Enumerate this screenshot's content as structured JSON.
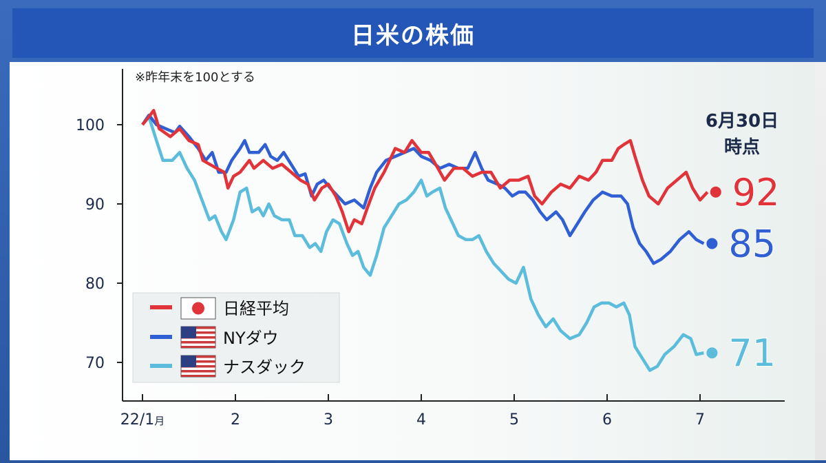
{
  "title": "日米の株価",
  "note": "※昨年末を100とする",
  "date_label_line1": "6月30日",
  "date_label_line2": "時点",
  "legend": [
    {
      "label": "日経平均",
      "flag": "japan-flag-icon"
    },
    {
      "label": "NYダウ",
      "flag": "usa-flag-icon"
    },
    {
      "label": "ナスダック",
      "flag": "usa-flag-icon"
    }
  ],
  "colors": {
    "nikkei": "#e0343a",
    "dow": "#2f5fd3",
    "nasdaq": "#5bbcdc"
  },
  "chart_data": {
    "type": "line",
    "title": "日米の株価",
    "xlabel": "",
    "ylabel": "",
    "ylim": [
      64,
      107
    ],
    "xlim": [
      0,
      6.9
    ],
    "x_ticks": [
      {
        "x": 0,
        "label": "22/1",
        "suffix": "月"
      },
      {
        "x": 1,
        "label": "2"
      },
      {
        "x": 2,
        "label": "3"
      },
      {
        "x": 3,
        "label": "4"
      },
      {
        "x": 4,
        "label": "5"
      },
      {
        "x": 5,
        "label": "6"
      },
      {
        "x": 6,
        "label": "7"
      }
    ],
    "y_ticks": [
      70,
      80,
      90,
      100
    ],
    "series": [
      {
        "name": "日経平均",
        "end_label": "92",
        "points": [
          [
            0,
            100
          ],
          [
            0.07,
            101
          ],
          [
            0.12,
            101.8
          ],
          [
            0.18,
            99.5
          ],
          [
            0.3,
            98.5
          ],
          [
            0.4,
            99.5
          ],
          [
            0.5,
            98
          ],
          [
            0.6,
            97.5
          ],
          [
            0.65,
            95.5
          ],
          [
            0.8,
            94.5
          ],
          [
            0.88,
            94
          ],
          [
            0.92,
            92
          ],
          [
            0.98,
            93.5
          ],
          [
            1.05,
            94
          ],
          [
            1.15,
            95.5
          ],
          [
            1.2,
            94.5
          ],
          [
            1.3,
            95.5
          ],
          [
            1.4,
            94.5
          ],
          [
            1.5,
            95
          ],
          [
            1.6,
            94
          ],
          [
            1.7,
            93
          ],
          [
            1.78,
            92.5
          ],
          [
            1.85,
            90.5
          ],
          [
            1.93,
            92
          ],
          [
            2.0,
            92.5
          ],
          [
            2.08,
            91
          ],
          [
            2.15,
            89
          ],
          [
            2.22,
            86.5
          ],
          [
            2.28,
            88
          ],
          [
            2.36,
            87.5
          ],
          [
            2.42,
            89.5
          ],
          [
            2.5,
            92
          ],
          [
            2.6,
            94
          ],
          [
            2.72,
            97
          ],
          [
            2.82,
            96.5
          ],
          [
            2.9,
            98
          ],
          [
            3.0,
            96.5
          ],
          [
            3.08,
            96.5
          ],
          [
            3.18,
            94.5
          ],
          [
            3.25,
            93
          ],
          [
            3.35,
            94.5
          ],
          [
            3.45,
            94.5
          ],
          [
            3.55,
            93.5
          ],
          [
            3.65,
            94
          ],
          [
            3.75,
            94
          ],
          [
            3.85,
            92
          ],
          [
            3.95,
            93
          ],
          [
            4.05,
            93
          ],
          [
            4.15,
            93.5
          ],
          [
            4.22,
            91
          ],
          [
            4.3,
            90
          ],
          [
            4.4,
            91.5
          ],
          [
            4.5,
            92.5
          ],
          [
            4.6,
            92
          ],
          [
            4.7,
            93.5
          ],
          [
            4.8,
            93
          ],
          [
            4.88,
            94
          ],
          [
            4.95,
            95.5
          ],
          [
            5.05,
            95.5
          ],
          [
            5.12,
            97
          ],
          [
            5.18,
            97.5
          ],
          [
            5.25,
            98
          ],
          [
            5.3,
            96
          ],
          [
            5.38,
            93
          ],
          [
            5.45,
            91
          ],
          [
            5.55,
            90
          ],
          [
            5.65,
            92
          ],
          [
            5.75,
            93
          ],
          [
            5.85,
            94
          ],
          [
            5.92,
            92
          ],
          [
            6.0,
            90.5
          ],
          [
            6.08,
            91.5
          ]
        ]
      },
      {
        "name": "NYダウ",
        "end_label": "85",
        "points": [
          [
            0,
            100
          ],
          [
            0.07,
            101.2
          ],
          [
            0.15,
            100
          ],
          [
            0.25,
            99.5
          ],
          [
            0.35,
            99
          ],
          [
            0.4,
            99.8
          ],
          [
            0.5,
            98.5
          ],
          [
            0.6,
            97
          ],
          [
            0.68,
            95.5
          ],
          [
            0.75,
            96.5
          ],
          [
            0.82,
            94
          ],
          [
            0.9,
            94
          ],
          [
            0.96,
            95.5
          ],
          [
            1.05,
            97
          ],
          [
            1.1,
            98
          ],
          [
            1.15,
            96.5
          ],
          [
            1.25,
            96.5
          ],
          [
            1.32,
            97.5
          ],
          [
            1.38,
            96
          ],
          [
            1.45,
            95.5
          ],
          [
            1.52,
            96.5
          ],
          [
            1.6,
            95
          ],
          [
            1.68,
            93.5
          ],
          [
            1.75,
            93.8
          ],
          [
            1.82,
            91
          ],
          [
            1.88,
            92.5
          ],
          [
            1.95,
            93
          ],
          [
            2.02,
            92
          ],
          [
            2.1,
            91
          ],
          [
            2.18,
            90
          ],
          [
            2.28,
            90.5
          ],
          [
            2.38,
            89.5
          ],
          [
            2.45,
            92
          ],
          [
            2.52,
            94
          ],
          [
            2.62,
            95.5
          ],
          [
            2.72,
            96
          ],
          [
            2.82,
            96.5
          ],
          [
            2.92,
            97
          ],
          [
            3.0,
            96
          ],
          [
            3.1,
            95.5
          ],
          [
            3.2,
            94.5
          ],
          [
            3.3,
            95
          ],
          [
            3.4,
            94.5
          ],
          [
            3.5,
            94.5
          ],
          [
            3.58,
            96.5
          ],
          [
            3.65,
            94.5
          ],
          [
            3.72,
            93
          ],
          [
            3.82,
            92.5
          ],
          [
            3.9,
            92
          ],
          [
            3.98,
            91
          ],
          [
            4.05,
            91.5
          ],
          [
            4.12,
            91.5
          ],
          [
            4.2,
            90.5
          ],
          [
            4.28,
            89
          ],
          [
            4.35,
            88
          ],
          [
            4.45,
            89
          ],
          [
            4.52,
            88
          ],
          [
            4.6,
            86
          ],
          [
            4.68,
            87.5
          ],
          [
            4.76,
            89
          ],
          [
            4.85,
            90.5
          ],
          [
            4.95,
            91.5
          ],
          [
            5.05,
            91
          ],
          [
            5.15,
            91
          ],
          [
            5.22,
            90
          ],
          [
            5.28,
            87
          ],
          [
            5.35,
            85
          ],
          [
            5.42,
            84
          ],
          [
            5.5,
            82.5
          ],
          [
            5.58,
            83
          ],
          [
            5.68,
            84
          ],
          [
            5.78,
            85.5
          ],
          [
            5.88,
            86.5
          ],
          [
            5.96,
            85.5
          ],
          [
            6.04,
            85
          ]
        ]
      },
      {
        "name": "ナスダック",
        "end_label": "71",
        "points": [
          [
            0,
            100
          ],
          [
            0.07,
            101
          ],
          [
            0.15,
            98
          ],
          [
            0.22,
            95.5
          ],
          [
            0.32,
            95.5
          ],
          [
            0.4,
            96.5
          ],
          [
            0.48,
            94.5
          ],
          [
            0.56,
            93
          ],
          [
            0.64,
            90.5
          ],
          [
            0.72,
            88
          ],
          [
            0.78,
            88.5
          ],
          [
            0.85,
            86.5
          ],
          [
            0.9,
            85.5
          ],
          [
            0.98,
            88
          ],
          [
            1.05,
            91.5
          ],
          [
            1.12,
            92
          ],
          [
            1.18,
            89
          ],
          [
            1.25,
            89.5
          ],
          [
            1.3,
            88.5
          ],
          [
            1.36,
            90
          ],
          [
            1.42,
            88.5
          ],
          [
            1.5,
            88
          ],
          [
            1.58,
            88
          ],
          [
            1.64,
            86
          ],
          [
            1.72,
            86
          ],
          [
            1.8,
            84.5
          ],
          [
            1.86,
            85
          ],
          [
            1.92,
            84
          ],
          [
            1.98,
            86.5
          ],
          [
            2.05,
            88
          ],
          [
            2.12,
            87.5
          ],
          [
            2.2,
            85
          ],
          [
            2.26,
            83.5
          ],
          [
            2.32,
            84
          ],
          [
            2.38,
            82
          ],
          [
            2.45,
            81
          ],
          [
            2.52,
            83.5
          ],
          [
            2.6,
            87
          ],
          [
            2.68,
            88.5
          ],
          [
            2.76,
            90
          ],
          [
            2.84,
            90.5
          ],
          [
            2.92,
            91.5
          ],
          [
            3.0,
            93
          ],
          [
            3.06,
            91
          ],
          [
            3.12,
            91.5
          ],
          [
            3.2,
            92
          ],
          [
            3.26,
            89.5
          ],
          [
            3.32,
            88
          ],
          [
            3.4,
            86
          ],
          [
            3.48,
            85.5
          ],
          [
            3.55,
            85.5
          ],
          [
            3.62,
            86
          ],
          [
            3.7,
            84
          ],
          [
            3.78,
            82.5
          ],
          [
            3.86,
            81.5
          ],
          [
            3.94,
            80.5
          ],
          [
            4.02,
            80
          ],
          [
            4.1,
            82
          ],
          [
            4.18,
            78
          ],
          [
            4.26,
            76
          ],
          [
            4.34,
            74.5
          ],
          [
            4.42,
            75.5
          ],
          [
            4.5,
            74
          ],
          [
            4.6,
            73
          ],
          [
            4.7,
            73.5
          ],
          [
            4.78,
            75
          ],
          [
            4.86,
            77
          ],
          [
            4.94,
            77.5
          ],
          [
            5.02,
            77.5
          ],
          [
            5.1,
            77
          ],
          [
            5.18,
            77.5
          ],
          [
            5.24,
            76
          ],
          [
            5.3,
            72
          ],
          [
            5.38,
            70.5
          ],
          [
            5.46,
            69
          ],
          [
            5.54,
            69.5
          ],
          [
            5.62,
            71
          ],
          [
            5.72,
            72
          ],
          [
            5.82,
            73.5
          ],
          [
            5.9,
            73
          ],
          [
            5.96,
            71
          ],
          [
            6.04,
            71.2
          ]
        ]
      }
    ]
  }
}
